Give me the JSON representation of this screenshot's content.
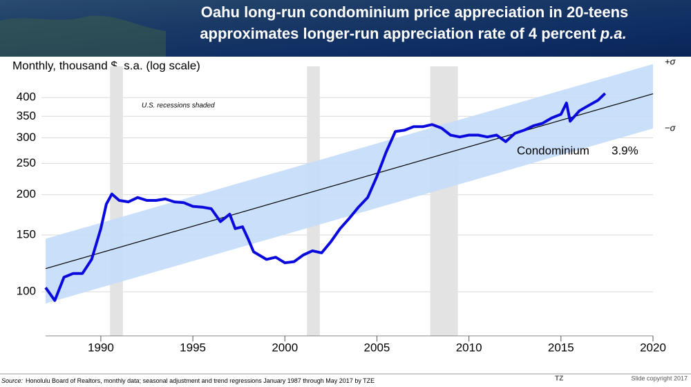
{
  "chart_data": {
    "type": "line",
    "title": [
      "Oahu long-run condominium price appreciation in 20-teens",
      "approximates longer-run appreciation rate of 4 percent "
    ],
    "title_emphasis": "p.a.",
    "y_label": "Monthly, thousand $, s.a. (log scale)",
    "annotation": "U.S. recessions shaded",
    "log_scale": true,
    "grid": true,
    "xlim": [
      1987,
      2020
    ],
    "xticks": [
      1990,
      1995,
      2000,
      2005,
      2010,
      2015,
      2020
    ],
    "ylim": [
      73,
      500
    ],
    "yticks": [
      100,
      150,
      200,
      250,
      300,
      350,
      400
    ],
    "x": [
      1987,
      1987.5,
      1988,
      1988.5,
      1989,
      1989.5,
      1990,
      1990.3,
      1990.6,
      1991,
      1991.5,
      1992,
      1992.5,
      1993,
      1993.5,
      1994,
      1994.5,
      1995,
      1995.5,
      1996,
      1996.5,
      1997,
      1997.3,
      1997.7,
      1998,
      1998.3,
      1998.7,
      1999,
      1999.5,
      2000,
      2000.5,
      2001,
      2001.5,
      2002,
      2002.5,
      2003,
      2003.5,
      2004,
      2004.5,
      2005,
      2005.5,
      2006,
      2006.5,
      2007,
      2007.5,
      2008,
      2008.5,
      2009,
      2009.5,
      2010,
      2010.5,
      2011,
      2011.5,
      2012,
      2012.5,
      2013,
      2013.5,
      2014,
      2014.5,
      2015,
      2015.3,
      2015.5,
      2016,
      2016.5,
      2017,
      2017.4
    ],
    "series": [
      {
        "name": "Condominium",
        "color": "#0a0adc",
        "values": [
          103,
          94,
          111,
          114,
          114,
          126,
          157,
          187,
          201,
          192,
          190,
          196,
          192,
          192,
          194,
          190,
          189,
          184,
          183,
          181,
          165,
          174,
          157,
          159,
          146,
          133,
          129,
          126,
          128,
          123,
          124,
          130,
          134,
          132,
          143,
          157,
          169,
          183,
          196,
          228,
          271,
          314,
          317,
          325,
          325,
          330,
          322,
          306,
          302,
          306,
          306,
          302,
          306,
          292,
          310,
          317,
          327,
          333,
          346,
          355,
          385,
          338,
          364,
          378,
          392,
          412
        ]
      }
    ],
    "trend_rate": {
      "value": 3.9,
      "label": "3.9%"
    },
    "trend": {
      "x": [
        1987,
        2020
      ],
      "values": [
        118,
        411
      ],
      "color": "#000000"
    },
    "band": {
      "x": [
        1987,
        2020
      ],
      "upper": [
        146,
        508
      ],
      "lower": [
        92,
        321
      ],
      "color": "#c4dbf8",
      "upper_label": "+σ",
      "lower_label": "−σ"
    },
    "recessions": [
      [
        1990.5,
        1991.2
      ],
      [
        2001.2,
        2001.9
      ],
      [
        2007.9,
        2009.4
      ]
    ],
    "recession_color": "#e3e3e3",
    "source_label": "Source:",
    "source": "Honolulu Board of Realtors, monthly data; seasonal adjustment and trend regressions January 1987 through May 2017 by TZE",
    "brand": "TZ",
    "copyright": "Slide copyright 2017"
  }
}
